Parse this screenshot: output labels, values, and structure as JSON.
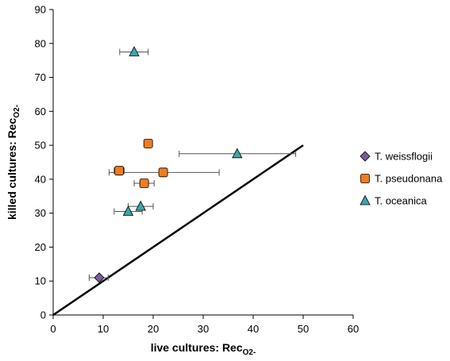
{
  "chart_data": {
    "type": "scatter",
    "title": "",
    "xlabel": {
      "main": "live cultures: Rec",
      "sub": "O2-"
    },
    "ylabel": {
      "main": "killed cultures: Rec",
      "sub": "O2-"
    },
    "xlim": [
      0,
      60
    ],
    "ylim": [
      0,
      90
    ],
    "xticks": [
      "0",
      "10",
      "20",
      "30",
      "40",
      "50",
      "60"
    ],
    "yticks": [
      "0",
      "10",
      "20",
      "30",
      "40",
      "50",
      "60",
      "70",
      "80",
      "90"
    ],
    "grid": false,
    "legend_position": "right",
    "reference_line": {
      "x": [
        0,
        50
      ],
      "y": [
        0,
        50
      ]
    },
    "series": [
      {
        "name": "T. weissflogii",
        "marker": "diamond",
        "color": "#7a5c9e",
        "points": [
          {
            "x": 9.2,
            "y": 11.0,
            "xerr": [
              7.2,
              11.0
            ]
          }
        ]
      },
      {
        "name": "T. pseudonana",
        "marker": "square",
        "color": "#f07c1e",
        "points": [
          {
            "x": 19.0,
            "y": 50.5,
            "xerr": [
              18.2,
              19.8
            ]
          },
          {
            "x": 13.2,
            "y": 42.5,
            "xerr": [
              12.2,
              14.2
            ]
          },
          {
            "x": 22.0,
            "y": 42.0,
            "xerr": [
              11.2,
              33.2
            ]
          },
          {
            "x": 18.2,
            "y": 38.8,
            "xerr": [
              16.2,
              20.2
            ]
          }
        ]
      },
      {
        "name": "T. oceanica",
        "marker": "triangle",
        "color": "#3aa7a8",
        "points": [
          {
            "x": 16.2,
            "y": 77.5,
            "xerr": [
              13.3,
              19.0
            ]
          },
          {
            "x": 36.8,
            "y": 47.5,
            "xerr": [
              25.2,
              48.5
            ]
          },
          {
            "x": 17.5,
            "y": 32.0,
            "xerr": [
              15.0,
              20.0
            ]
          },
          {
            "x": 15.0,
            "y": 30.5,
            "xerr": [
              12.2,
              17.8
            ]
          }
        ]
      }
    ]
  }
}
